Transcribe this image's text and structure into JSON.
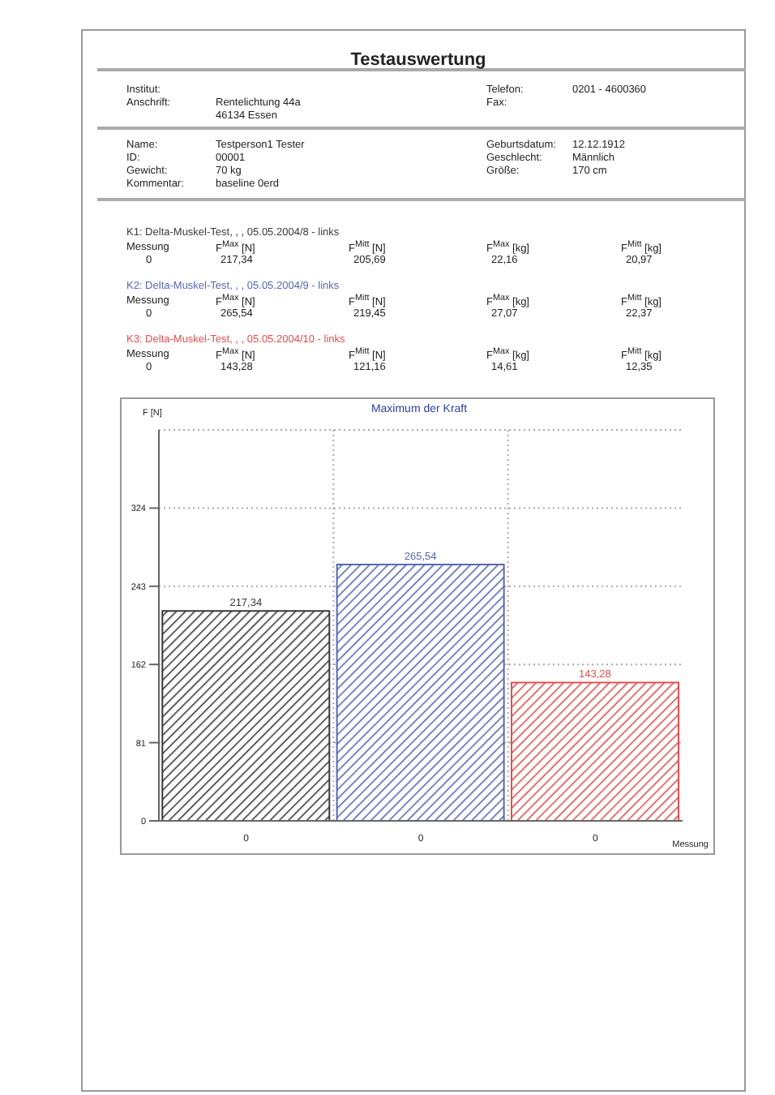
{
  "chart_data": {
    "type": "bar",
    "title": "Maximum der Kraft",
    "xlabel": "Messung",
    "ylabel": "F [N]",
    "categories": [
      "0",
      "0",
      "0"
    ],
    "values": [
      217.34,
      265.54,
      143.28
    ],
    "colors": [
      "#3a3a3a",
      "#5868b0",
      "#e05050"
    ],
    "value_labels": [
      "217,34",
      "265,54",
      "143,28"
    ],
    "ylim": [
      0,
      405
    ],
    "yticks": [
      0,
      81,
      162,
      243,
      324
    ],
    "grid": true,
    "annotations": [
      "Testauswertung",
      "Institut:",
      "Anschrift:",
      "Rentelichtung 44a",
      "46134 Essen",
      "Telefon:",
      "0201 - 4600360",
      "Fax:",
      "Name:",
      "Testperson1 Tester",
      "ID:",
      "00001",
      "Gewicht:",
      "70 kg",
      "Kommentar:",
      "baseline 0erd",
      "Geburtsdatum:",
      "12.12.1912",
      "Geschlecht:",
      "Männlich",
      "Größe:",
      "170 cm",
      "K1: Delta-Muskel-Test, , , 05.05.2004/8 - links",
      "Messung",
      "F$^{Max}$ [N]",
      "F$^{Mitt}$ [N]",
      "F$^{Max}$ [kg]",
      "F$^{Mitt}$ [kg]",
      "0",
      "217,34",
      "205,69",
      "22,16",
      "20,97",
      "K2: Delta-Muskel-Test, , , 05.05.2004/9 - links",
      "Messung",
      "F$^{Max}$ [N]",
      "F$^{Mitt}$ [N]",
      "F$^{Max}$ [kg]",
      "F$^{Mitt}$ [kg]",
      "0",
      "265,54",
      "219,45",
      "27,07",
      "22,37",
      "K3: Delta-Muskel-Test, , , 05.05.2004/10 - links",
      "Messung",
      "F$^{Max}$ [N]",
      "F$^{Mitt}$ [N]",
      "F$^{Max}$ [kg]",
      "F$^{Mitt}$ [kg]",
      "0",
      "143,28",
      "121,16",
      "14,61",
      "12,35"
    ]
  }
}
